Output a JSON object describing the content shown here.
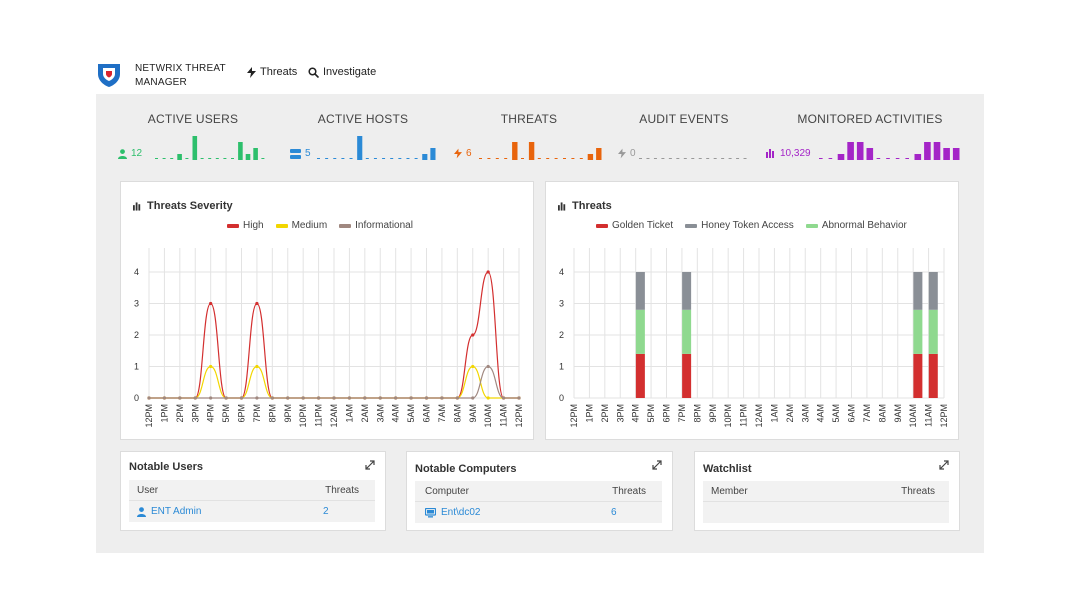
{
  "header": {
    "brand_line1": "NETWRIX THREAT",
    "brand_line2": "MANAGER",
    "nav": [
      {
        "label": "Threats",
        "icon": "bolt-icon"
      },
      {
        "label": "Investigate",
        "icon": "search-icon"
      }
    ],
    "logo_colors": {
      "shield": "#1f6fc5",
      "accent": "#d9232e"
    }
  },
  "stats": [
    {
      "title": "ACTIVE USERS",
      "value": "12",
      "icon": "user-icon",
      "color": "#2dbf6c",
      "spark": [
        0,
        0,
        0,
        1,
        0,
        4,
        0,
        0,
        0,
        0,
        0,
        3,
        1,
        2,
        0
      ]
    },
    {
      "title": "ACTIVE HOSTS",
      "value": "5",
      "icon": "server-icon",
      "color": "#2b8ad6",
      "spark": [
        0,
        0,
        0,
        0,
        0,
        4,
        0,
        0,
        0,
        0,
        0,
        0,
        0,
        1,
        2
      ]
    },
    {
      "title": "THREATS",
      "value": "6",
      "icon": "bolt-icon",
      "color": "#e8640c",
      "spark": [
        0,
        0,
        0,
        0,
        3,
        0,
        3,
        0,
        0,
        0,
        0,
        0,
        0,
        1,
        2
      ]
    },
    {
      "title": "AUDIT EVENTS",
      "value": "0",
      "icon": "bolt-icon",
      "color": "#999999",
      "spark": [
        0,
        0,
        0,
        0,
        0,
        0,
        0,
        0,
        0,
        0,
        0,
        0,
        0,
        0,
        0
      ]
    },
    {
      "title": "MONITORED ACTIVITIES",
      "value": "10,329",
      "icon": "bar-chart-icon",
      "color": "#a425c7",
      "spark": [
        0,
        0,
        1,
        3,
        3,
        2,
        0,
        0,
        0,
        0,
        1,
        3,
        3,
        2,
        2
      ]
    }
  ],
  "severity_card": {
    "title": "Threats Severity",
    "chart_data": {
      "type": "line",
      "title": "Threats Severity",
      "x": [
        "12PM",
        "1PM",
        "2PM",
        "3PM",
        "4PM",
        "5PM",
        "6PM",
        "7PM",
        "8PM",
        "9PM",
        "10PM",
        "11PM",
        "12AM",
        "1AM",
        "2AM",
        "3AM",
        "4AM",
        "5AM",
        "6AM",
        "7AM",
        "8AM",
        "9AM",
        "10AM",
        "11AM",
        "12PM"
      ],
      "ylim": [
        0,
        4
      ],
      "yticks": [
        "0",
        "1",
        "2",
        "3",
        "4"
      ],
      "grid": true,
      "legend_position": "top-center",
      "series": [
        {
          "name": "High",
          "color": "#d32f2f",
          "values": [
            0,
            0,
            0,
            0,
            3,
            0,
            0,
            3,
            0,
            0,
            0,
            0,
            0,
            0,
            0,
            0,
            0,
            0,
            0,
            0,
            0,
            2,
            4,
            0,
            0
          ]
        },
        {
          "name": "Medium",
          "color": "#f2d600",
          "values": [
            0,
            0,
            0,
            0,
            1,
            0,
            0,
            1,
            0,
            0,
            0,
            0,
            0,
            0,
            0,
            0,
            0,
            0,
            0,
            0,
            0,
            1,
            0,
            0,
            0
          ]
        },
        {
          "name": "Informational",
          "color": "#a08880",
          "values": [
            0,
            0,
            0,
            0,
            0,
            0,
            0,
            0,
            0,
            0,
            0,
            0,
            0,
            0,
            0,
            0,
            0,
            0,
            0,
            0,
            0,
            0,
            1,
            0,
            0
          ]
        }
      ]
    }
  },
  "threats_card": {
    "title": "Threats",
    "chart_data": {
      "type": "bar",
      "stacked": true,
      "title": "Threats",
      "categories": [
        "12PM",
        "1PM",
        "2PM",
        "3PM",
        "4PM",
        "5PM",
        "6PM",
        "7PM",
        "8PM",
        "9PM",
        "10PM",
        "11PM",
        "12AM",
        "1AM",
        "2AM",
        "3AM",
        "4AM",
        "5AM",
        "6AM",
        "7AM",
        "8AM",
        "9AM",
        "10AM",
        "11AM",
        "12PM"
      ],
      "ylim": [
        0,
        4
      ],
      "yticks": [
        "0",
        "1",
        "2",
        "3",
        "4"
      ],
      "grid": true,
      "legend_position": "top-center",
      "series": [
        {
          "name": "Golden Ticket",
          "color": "#d32f2f",
          "values": [
            0,
            0,
            0,
            0,
            1.4,
            0,
            0,
            1.4,
            0,
            0,
            0,
            0,
            0,
            0,
            0,
            0,
            0,
            0,
            0,
            0,
            0,
            0,
            1.4,
            1.4,
            0
          ]
        },
        {
          "name": "Abnormal Behavior",
          "color": "#8fd98f",
          "values": [
            0,
            0,
            0,
            0,
            1.4,
            0,
            0,
            1.4,
            0,
            0,
            0,
            0,
            0,
            0,
            0,
            0,
            0,
            0,
            0,
            0,
            0,
            0,
            1.4,
            1.4,
            0
          ]
        },
        {
          "name": "Honey Token Access",
          "color": "#8a8f96",
          "values": [
            0,
            0,
            0,
            0,
            1.2,
            0,
            0,
            1.2,
            0,
            0,
            0,
            0,
            0,
            0,
            0,
            0,
            0,
            0,
            0,
            0,
            0,
            0,
            1.2,
            1.2,
            0
          ]
        }
      ],
      "legend_order": [
        "Golden Ticket",
        "Honey Token Access",
        "Abnormal Behavior"
      ]
    }
  },
  "notable_users": {
    "title": "Notable Users",
    "columns": [
      "User",
      "Threats"
    ],
    "rows": [
      {
        "name": "ENT Admin",
        "threats": "2",
        "icon": "user-icon"
      }
    ]
  },
  "notable_computers": {
    "title": "Notable Computers",
    "columns": [
      "Computer",
      "Threats"
    ],
    "rows": [
      {
        "name": "Ent\\dc02",
        "threats": "6",
        "icon": "monitor-icon"
      }
    ]
  },
  "watchlist": {
    "title": "Watchlist",
    "columns": [
      "Member",
      "Threats"
    ],
    "rows": []
  }
}
